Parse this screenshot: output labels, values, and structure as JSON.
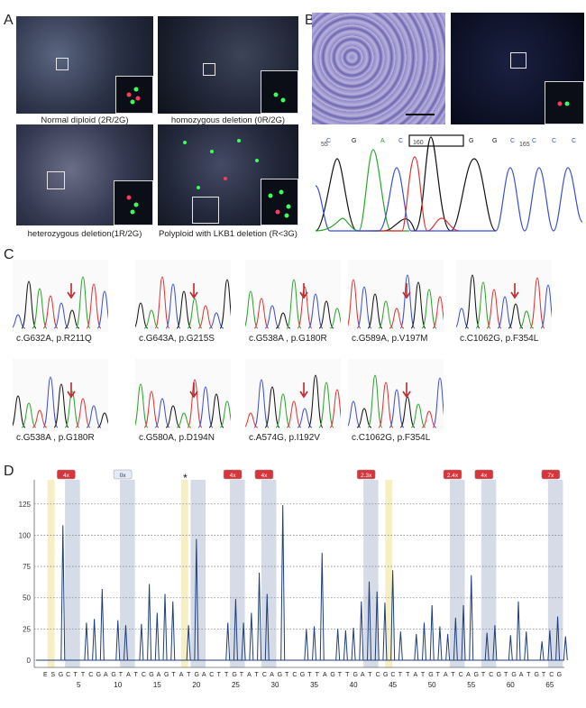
{
  "panels": {
    "a": "A",
    "b": "B",
    "c": "C",
    "d": "D"
  },
  "panel_a": {
    "captions": [
      "Normal diploid (2R/2G)",
      "homozygous deletion (0R/2G)",
      "heterozygous deletion(1R/2G)",
      "Polyploid with LKB1 deletion (R<3G)"
    ]
  },
  "panel_b": {
    "seq_numbers": [
      "55",
      "160",
      "165"
    ],
    "seq_letters": [
      "C",
      "G",
      "A",
      "C",
      "G",
      "G",
      "C",
      "C",
      "C",
      "C"
    ]
  },
  "panel_c": {
    "mutations": [
      "c.G632A, p.R211Q",
      "c.G643A, p.G215S",
      "c.G538A , p.G180R",
      "c.G589A, p.V197M",
      "c.C1062G, p.F354L",
      "c.G538A , p.G180R",
      "c.G580A, p.D194N",
      "c.A574G, p.I192V",
      "c.C1062G, p.F354L"
    ]
  },
  "panel_d": {
    "badges": [
      "4x",
      "0x",
      "4x",
      "4x",
      "2.3x",
      "2.4x",
      "4x",
      "7x"
    ],
    "star": "*",
    "x_sequence": [
      "E",
      "S",
      "G",
      "C",
      "T",
      "T",
      "C",
      "G",
      "A",
      "G",
      "T",
      "A",
      "T",
      "C",
      "G",
      "A",
      "G",
      "T",
      "A",
      "T",
      "G",
      "A",
      "C",
      "T",
      "T",
      "G",
      "T",
      "A",
      "T",
      "C",
      "A",
      "G",
      "T",
      "C",
      "G",
      "T",
      "T",
      "A",
      "G",
      "T",
      "T",
      "G",
      "A",
      "T",
      "C",
      "G",
      "C",
      "T",
      "T",
      "A",
      "T",
      "G",
      "T",
      "A",
      "T",
      "C",
      "A",
      "G",
      "T",
      "C",
      "G",
      "T",
      "G",
      "A",
      "T",
      "G",
      "T",
      "C",
      "G"
    ]
  },
  "chart_data": {
    "type": "bar",
    "title": "",
    "xlabel": "",
    "ylabel": "",
    "ylim": [
      0,
      140
    ],
    "y_ticks": [
      0,
      25,
      50,
      75,
      100,
      125
    ],
    "x_ticks": [
      5,
      10,
      15,
      20,
      25,
      30,
      35,
      40,
      45,
      50,
      55,
      60,
      65
    ],
    "x": [
      1,
      2,
      3,
      4,
      5,
      6,
      7,
      8,
      9,
      10,
      11,
      12,
      13,
      14,
      15,
      16,
      17,
      18,
      19,
      20,
      21,
      22,
      23,
      24,
      25,
      26,
      27,
      28,
      29,
      30,
      31,
      32,
      33,
      34,
      35,
      36,
      37,
      38,
      39,
      40,
      41,
      42,
      43,
      44,
      45,
      46,
      47,
      48,
      49,
      50,
      51,
      52,
      53,
      54,
      55,
      56,
      57,
      58,
      59,
      60,
      61,
      62,
      63,
      64,
      65,
      66,
      67
    ],
    "values": [
      0,
      0,
      108,
      0,
      0,
      30,
      33,
      57,
      0,
      32,
      28,
      0,
      29,
      61,
      38,
      53,
      47,
      0,
      28,
      97,
      0,
      0,
      0,
      30,
      49,
      30,
      38,
      70,
      53,
      0,
      124,
      0,
      0,
      25,
      27,
      86,
      0,
      25,
      24,
      26,
      47,
      63,
      55,
      46,
      72,
      23,
      0,
      21,
      30,
      44,
      27,
      21,
      34,
      44,
      68,
      0,
      22,
      28,
      0,
      20,
      47,
      23,
      0,
      15,
      24,
      35,
      19
    ],
    "highlight_gray": [
      3.5,
      10.5,
      19.5,
      24.5,
      28.5,
      41.5,
      52.5,
      56.5,
      65
    ],
    "highlight_yellow": [
      1.5,
      18.5,
      44.5
    ]
  }
}
